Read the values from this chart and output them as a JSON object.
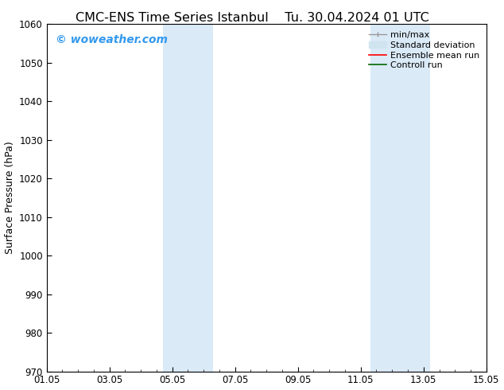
{
  "title_left": "CMC-ENS Time Series Istanbul",
  "title_right": "Tu. 30.04.2024 01 UTC",
  "ylabel": "Surface Pressure (hPa)",
  "ylim": [
    970,
    1060
  ],
  "yticks": [
    970,
    980,
    990,
    1000,
    1010,
    1020,
    1030,
    1040,
    1050,
    1060
  ],
  "xlim_start": 0,
  "xlim_end": 14,
  "xtick_positions": [
    0,
    2,
    4,
    6,
    8,
    10,
    12,
    14
  ],
  "xtick_labels": [
    "01.05",
    "03.05",
    "05.05",
    "07.05",
    "09.05",
    "11.05",
    "13.05",
    "15.05"
  ],
  "shaded_bands": [
    {
      "x_start": 3.7,
      "x_end": 5.3
    },
    {
      "x_start": 10.3,
      "x_end": 12.2
    }
  ],
  "band_color": "#daeaf7",
  "background_color": "#ffffff",
  "plot_bg_color": "#ffffff",
  "watermark_text": "© woweather.com",
  "watermark_color": "#3399ee",
  "title_fontsize": 11.5,
  "tick_fontsize": 8.5,
  "ylabel_fontsize": 9,
  "legend_fontsize": 8,
  "watermark_fontsize": 10
}
